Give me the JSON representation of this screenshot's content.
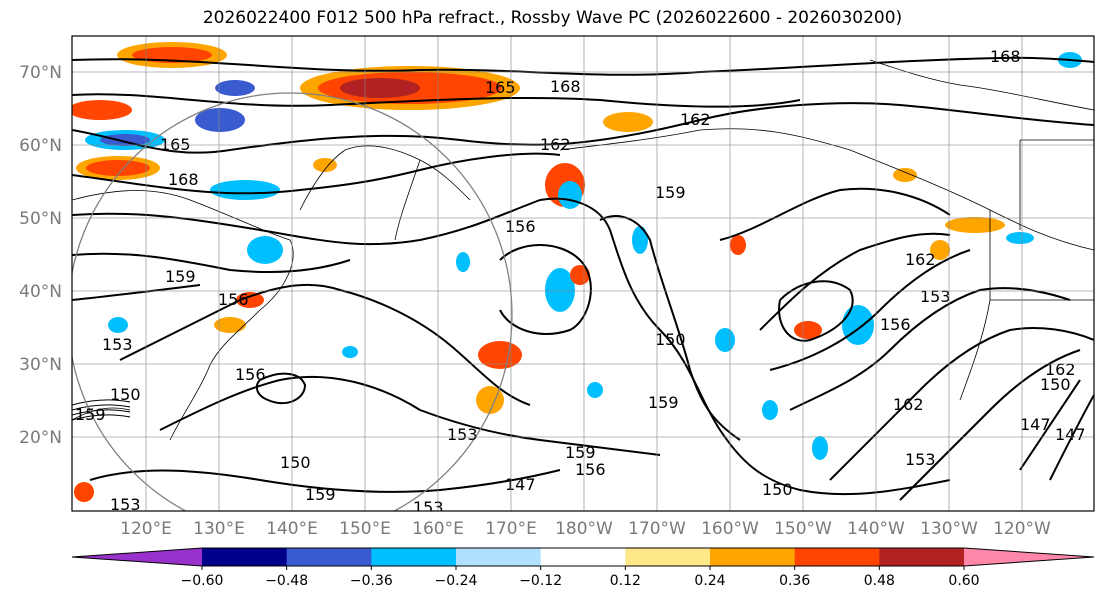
{
  "title": "2026022400 F012 500 hPa refract., Rossby Wave PC (2026022600 - 2026030200)",
  "lat_labels": [
    "70°N",
    "60°N",
    "50°N",
    "40°N",
    "30°N",
    "20°N"
  ],
  "lon_labels": [
    "120°E",
    "130°E",
    "140°E",
    "150°E",
    "160°E",
    "170°E",
    "180°W",
    "170°W",
    "160°W",
    "150°W",
    "140°W",
    "130°W",
    "120°W"
  ],
  "colorbar": {
    "colors": [
      "#9932cc",
      "#00008b",
      "#3a5bd0",
      "#00bfff",
      "#b0e2ff",
      "#ffffff",
      "#ffe88a",
      "#ffa500",
      "#ff4500",
      "#b22222",
      "#ff88aa"
    ],
    "tick_labels": [
      "−0.60",
      "−0.48",
      "−0.36",
      "−0.24",
      "−0.12",
      "0.12",
      "0.24",
      "0.36",
      "0.48",
      "0.60"
    ]
  },
  "contour_labels": [
    "168",
    "165",
    "168",
    "162",
    "162",
    "165",
    "168",
    "156",
    "159",
    "159",
    "156",
    "153",
    "156",
    "150",
    "150",
    "153",
    "159",
    "156",
    "147",
    "159",
    "150",
    "162",
    "153",
    "159",
    "150",
    "162",
    "153",
    "147",
    "150",
    "147",
    "153",
    "159",
    "162",
    "156",
    "153"
  ]
}
